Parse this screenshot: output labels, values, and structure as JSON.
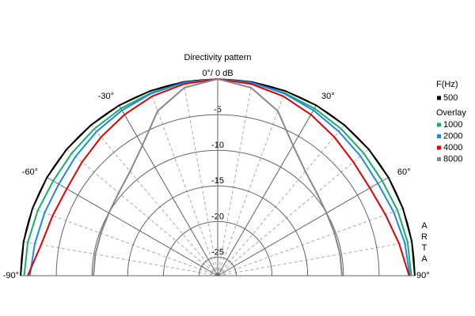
{
  "chart_data": {
    "type": "polar",
    "title": "Directivity pattern",
    "rlim": [
      -27.6,
      0
    ],
    "rticks": [
      -5,
      -10,
      -15,
      -20,
      -25
    ],
    "angle_ticks": [
      {
        "value": -90,
        "label": "-90°"
      },
      {
        "value": -60,
        "label": "-60°"
      },
      {
        "value": -30,
        "label": "-30°"
      },
      {
        "value": 0,
        "label": "0°/ 0 dB"
      },
      {
        "value": 30,
        "label": "30°"
      },
      {
        "value": 60,
        "label": "60°"
      },
      {
        "value": 90,
        "label": "90°"
      }
    ],
    "grid": true,
    "legend_title": "F(Hz)",
    "overlay_title": "Overlay",
    "watermark": "ARTA",
    "theta": [
      -90,
      -80,
      -70,
      -60,
      -50,
      -40,
      -30,
      -20,
      -10,
      0,
      10,
      20,
      30,
      40,
      50,
      60,
      70,
      80,
      90
    ],
    "series": [
      {
        "name": "500",
        "color": "#000000",
        "values": [
          0,
          0,
          0,
          0,
          0,
          0,
          0,
          0,
          0,
          0,
          0,
          0,
          0,
          0,
          0,
          0,
          0,
          0,
          0
        ]
      },
      {
        "name": "1000",
        "color": "#16b064",
        "values": [
          -0.5,
          -0.6,
          -0.8,
          -1,
          -0.9,
          -0.7,
          -0.5,
          -0.3,
          -0.1,
          0,
          -0.1,
          -0.3,
          -0.5,
          -0.7,
          -0.9,
          -1,
          -0.8,
          -0.6,
          -0.5
        ]
      },
      {
        "name": "2000",
        "color": "#2088e8",
        "values": [
          -1.3,
          -1.6,
          -1.8,
          -1.9,
          -1.6,
          -1.2,
          -0.8,
          -0.4,
          -0.1,
          0,
          -0.1,
          -0.4,
          -0.8,
          -1.2,
          -1.5,
          -1.7,
          -1.4,
          -1.0,
          -0.7
        ]
      },
      {
        "name": "4000",
        "color": "#e00000",
        "values": [
          -1,
          -2.5,
          -3,
          -3.2,
          -2.8,
          -2.2,
          -1.5,
          -0.8,
          -0.3,
          0,
          -0.3,
          -0.8,
          -1.5,
          -2.2,
          -2.8,
          -3.0,
          -2.6,
          -1.8,
          -0.8
        ]
      },
      {
        "name": "8000",
        "color": "#888888",
        "values": [
          -10.2,
          -10.2,
          -10.2,
          -10,
          -9.5,
          -8.5,
          -6.5,
          -3,
          -0.8,
          0,
          -0.8,
          -3,
          -6.5,
          -8.5,
          -9.5,
          -10,
          -10.2,
          -10.2,
          -10.2
        ]
      }
    ]
  }
}
